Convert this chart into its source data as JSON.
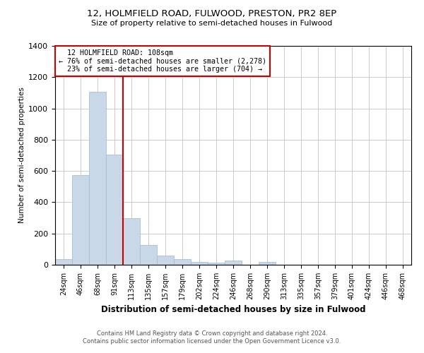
{
  "title1": "12, HOLMFIELD ROAD, FULWOOD, PRESTON, PR2 8EP",
  "title2": "Size of property relative to semi-detached houses in Fulwood",
  "xlabel": "Distribution of semi-detached houses by size in Fulwood",
  "ylabel": "Number of semi-detached properties",
  "footnote1": "Contains HM Land Registry data © Crown copyright and database right 2024.",
  "footnote2": "Contains public sector information licensed under the Open Government Licence v3.0.",
  "categories": [
    "24sqm",
    "46sqm",
    "68sqm",
    "91sqm",
    "113sqm",
    "135sqm",
    "157sqm",
    "179sqm",
    "202sqm",
    "224sqm",
    "246sqm",
    "268sqm",
    "290sqm",
    "313sqm",
    "335sqm",
    "357sqm",
    "379sqm",
    "401sqm",
    "424sqm",
    "446sqm",
    "468sqm"
  ],
  "values": [
    38,
    575,
    1108,
    704,
    300,
    128,
    60,
    35,
    20,
    13,
    25,
    0,
    20,
    0,
    0,
    0,
    0,
    0,
    0,
    0,
    0
  ],
  "bar_color": "#c8d8e8",
  "bar_edge_color": "#a0b8cc",
  "property_line_x": 3.5,
  "annotation_line1": "  12 HOLMFIELD ROAD: 108sqm",
  "annotation_line2": "← 76% of semi-detached houses are smaller (2,278)",
  "annotation_line3": "  23% of semi-detached houses are larger (704) →",
  "red_line_color": "#cc0000",
  "box_edge_color": "#cc0000",
  "ylim": [
    0,
    1400
  ],
  "yticks": [
    0,
    200,
    400,
    600,
    800,
    1000,
    1200,
    1400
  ],
  "background_color": "#ffffff",
  "grid_color": "#cccccc"
}
